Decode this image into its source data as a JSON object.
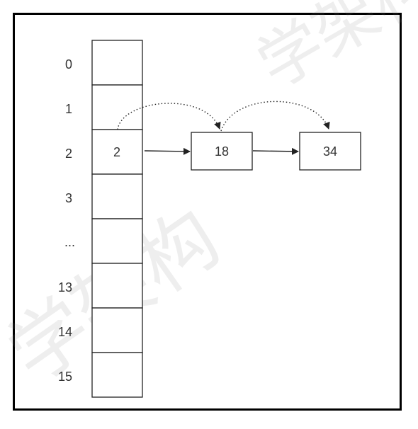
{
  "array": {
    "indices": [
      "0",
      "1",
      "2",
      "3",
      "...",
      "13",
      "14",
      "15"
    ],
    "cells": [
      "",
      "",
      "2",
      "",
      "",
      "",
      "",
      ""
    ]
  },
  "chain": {
    "nodes": [
      "18",
      "34"
    ]
  },
  "watermark": {
    "text": "学架构"
  },
  "colors": {
    "stroke": "#222222",
    "frame": "#000000",
    "text": "#333333"
  }
}
